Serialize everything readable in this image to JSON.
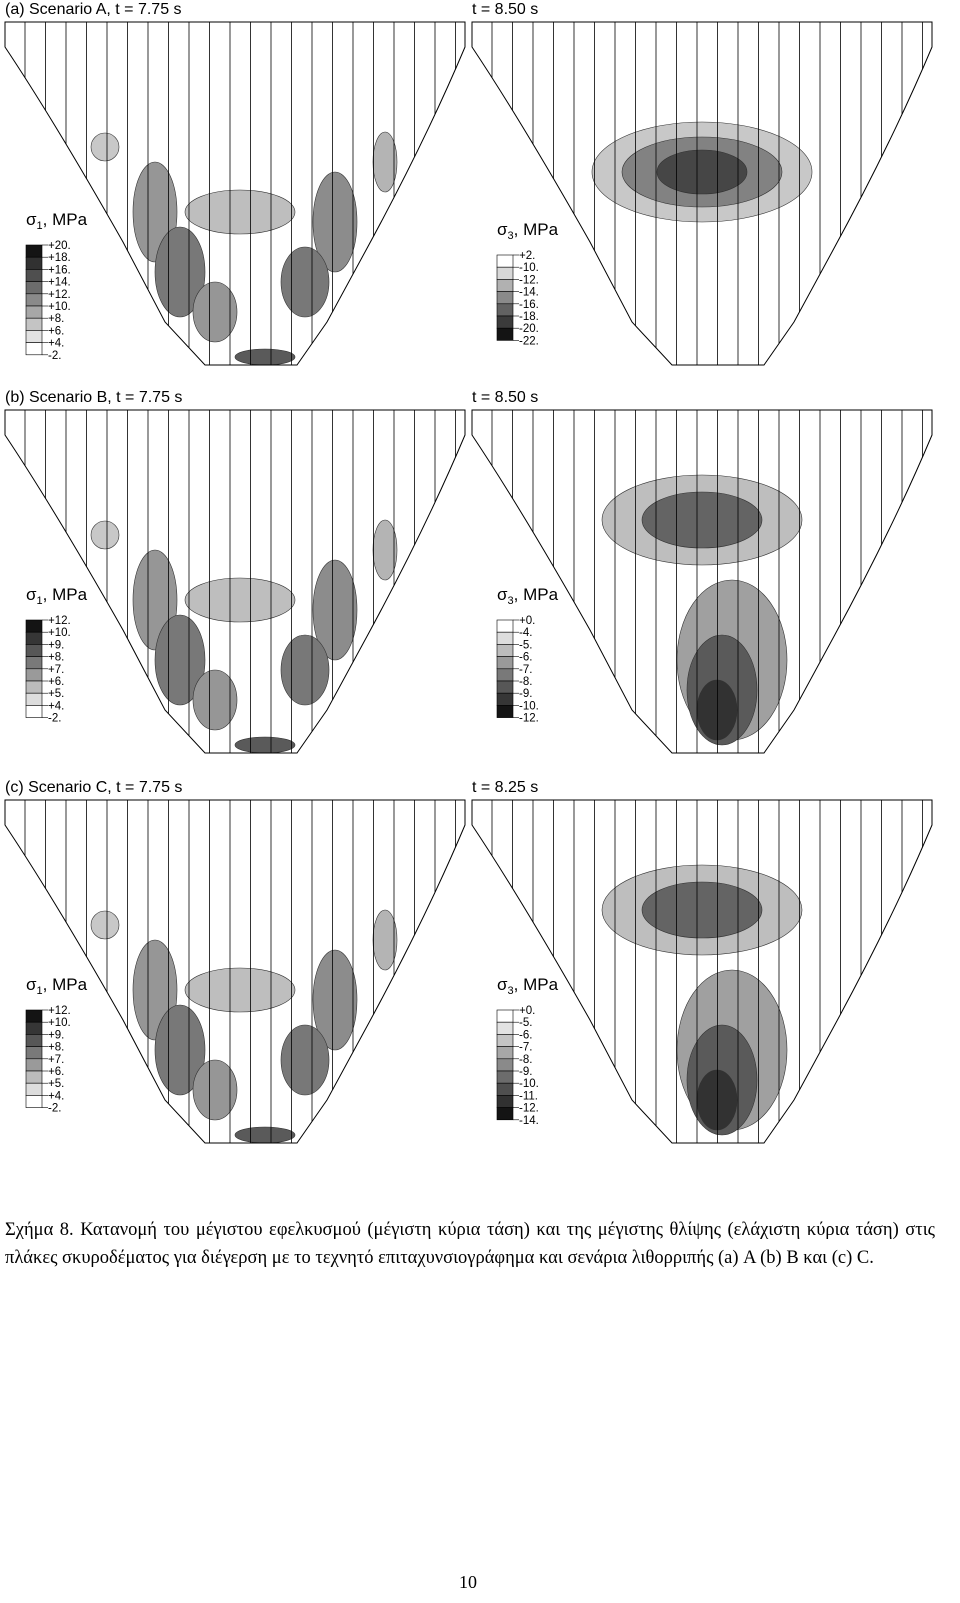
{
  "panels": [
    {
      "label": "(a)  Scenario A,  t = 7.75 s",
      "legend": {
        "symbol": "σ",
        "subscript": "1",
        "unit": ", MPa",
        "levels": [
          "+20.",
          "+18.",
          "+16.",
          "+14.",
          "+12.",
          "+10.",
          "+8.",
          "+6.",
          "+4.",
          "-2."
        ]
      }
    },
    {
      "label": "t = 8.50 s",
      "legend": {
        "symbol": "σ",
        "subscript": "3",
        "unit": ", MPa",
        "levels": [
          "+2.",
          "-10.",
          "-12.",
          "-14.",
          "-16.",
          "-18.",
          "-20.",
          "-22."
        ]
      }
    },
    {
      "label": "(b) Scenario B, t = 7.75 s",
      "legend": {
        "symbol": "σ",
        "subscript": "1",
        "unit": ", MPa",
        "levels": [
          "+12.",
          "+10.",
          "+9.",
          "+8.",
          "+7.",
          "+6.",
          "+5.",
          "+4.",
          "-2."
        ]
      }
    },
    {
      "label": "t = 8.50 s",
      "legend": {
        "symbol": "σ",
        "subscript": "3",
        "unit": ", MPa",
        "levels": [
          "+0.",
          "-4.",
          "-5.",
          "-6.",
          "-7.",
          "-8.",
          "-9.",
          "-10.",
          "-12."
        ]
      }
    },
    {
      "label": "(c) Scenario C, t = 7.75 s",
      "legend": {
        "symbol": "σ",
        "subscript": "1",
        "unit": ", MPa",
        "levels": [
          "+12.",
          "+10.",
          "+9.",
          "+8.",
          "+7.",
          "+6.",
          "+5.",
          "+4.",
          "-2."
        ]
      }
    },
    {
      "label": "t = 8.25 s",
      "legend": {
        "symbol": "σ",
        "subscript": "3",
        "unit": ", MPa",
        "levels": [
          "+0.",
          "-5.",
          "-6.",
          "-7.",
          "-8.",
          "-9.",
          "-10.",
          "-11.",
          "-12.",
          "-14."
        ]
      }
    }
  ],
  "caption": "Σχήμα 8. Κατανομή του μέγιστου εφελκυσμού (μέγιστη κύρια τάση) και της μέγιστης θλίψης (ελάχιστη κύρια τάση) στις πλάκες σκυροδέματος για διέγερση με το τεχνητό επιταχυνσιογράφημα και σενάρια λιθορριπής (a) A  (b) B και (c) C.",
  "page_number": "10"
}
